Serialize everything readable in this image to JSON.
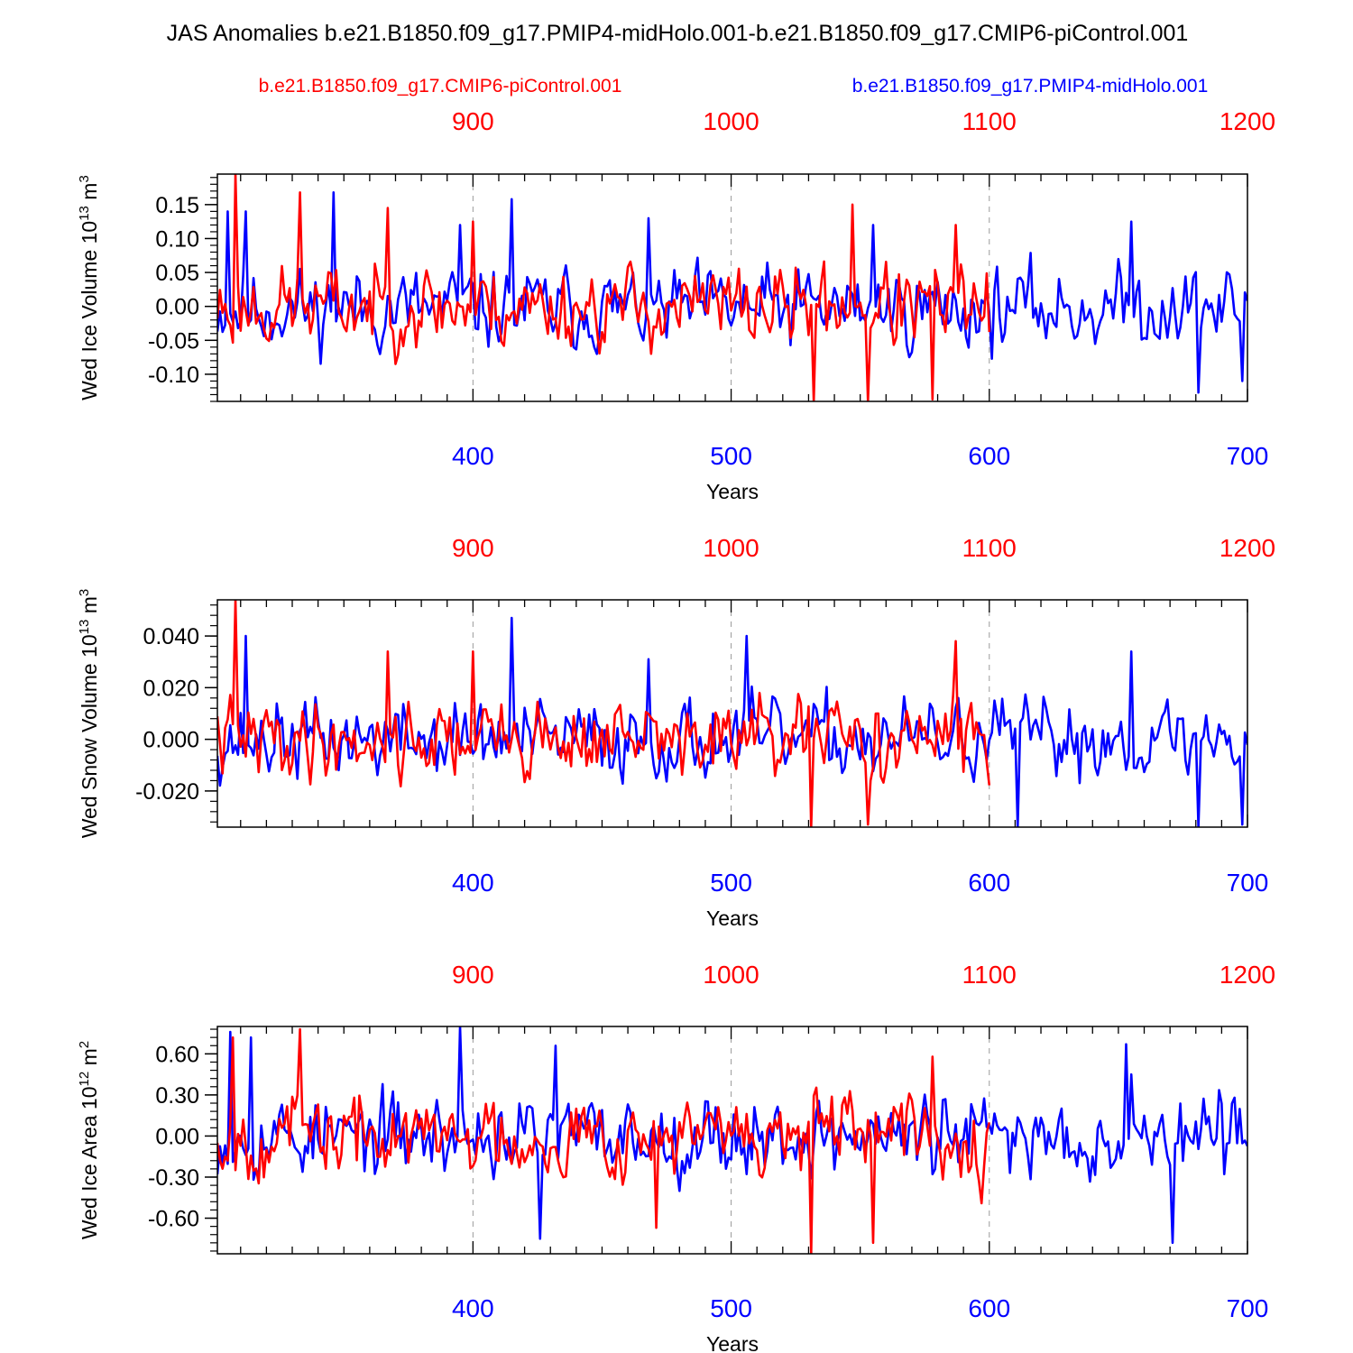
{
  "title": "JAS Anomalies b.e21.B1850.f09_g17.PMIP4-midHolo.001-b.e21.B1850.f09_g17.CMIP6-piControl.001",
  "legend": {
    "red_label": "b.e21.B1850.f09_g17.CMIP6-piControl.001",
    "blue_label": "b.e21.B1850.f09_g17.PMIP4-midHolo.001"
  },
  "colors": {
    "red": "#ff0000",
    "blue": "#0000ff",
    "axis": "#000000",
    "grid": "#999999"
  },
  "chart_data": [
    {
      "type": "line",
      "ylabel_main": "Wed Ice Volume 10",
      "ylabel_exp": "13",
      "ylabel_unit_base": " m",
      "ylabel_unit_exp": "3",
      "xlabel": "Years",
      "ylim": [
        -0.14,
        0.195
      ],
      "yticks": [
        -0.1,
        -0.05,
        0.0,
        0.05,
        0.1,
        0.15
      ],
      "ytick_labels": [
        "-0.10",
        "-0.05",
        "0.00",
        "0.05",
        "0.10",
        "0.15"
      ],
      "yminor_step": 0.01,
      "x_bottom": {
        "range": [
          301,
          700
        ],
        "ticks": [
          400,
          500,
          600,
          700
        ],
        "tick_labels": [
          "400",
          "500",
          "600",
          "700"
        ]
      },
      "x_top": {
        "ticks": [
          900,
          1000,
          1100,
          1200
        ],
        "tick_labels": [
          "900",
          "1000",
          "1100",
          "1200"
        ],
        "offset": 500
      },
      "series": [
        {
          "name": "b.e21.B1850.f09_g17.PMIP4-midHolo.001",
          "color": "blue",
          "start_year": 301,
          "scale": 0.052,
          "offset": -0.002,
          "seed": 11,
          "min": -0.13,
          "max": 0.168,
          "peaks": [
            [
              305,
              0.14
            ],
            [
              312,
              0.14
            ],
            [
              346,
              0.168
            ],
            [
              395,
              0.12
            ],
            [
              415,
              0.158
            ],
            [
              468,
              0.13
            ],
            [
              555,
              0.12
            ],
            [
              655,
              0.125
            ],
            [
              671,
              0.027
            ],
            [
              681,
              -0.127
            ],
            [
              698,
              -0.11
            ]
          ]
        },
        {
          "name": "b.e21.B1850.f09_g17.CMIP6-piControl.001",
          "color": "red",
          "start_year": 301,
          "scale": 0.052,
          "offset": 0.0,
          "seed": 23,
          "min": -0.14,
          "max": 0.195,
          "peaks": [
            [
              308,
              0.195
            ],
            [
              333,
              0.168
            ],
            [
              367,
              0.145
            ],
            [
              400,
              0.125
            ],
            [
              547,
              0.15
            ],
            [
              553,
              -0.14
            ],
            [
              578,
              -0.137
            ],
            [
              587,
              0.12
            ],
            [
              532,
              -0.14
            ]
          ]
        }
      ]
    },
    {
      "type": "line",
      "ylabel_main": "Wed Snow Volume 10",
      "ylabel_exp": "13",
      "ylabel_unit_base": " m",
      "ylabel_unit_exp": "3",
      "xlabel": "Years",
      "ylim": [
        -0.034,
        0.054
      ],
      "yticks": [
        -0.02,
        0.0,
        0.02,
        0.04
      ],
      "ytick_labels": [
        "-0.020",
        "0.000",
        "0.020",
        "0.040"
      ],
      "yminor_step": 0.004,
      "x_bottom": {
        "range": [
          301,
          700
        ],
        "ticks": [
          400,
          500,
          600,
          700
        ],
        "tick_labels": [
          "400",
          "500",
          "600",
          "700"
        ]
      },
      "x_top": {
        "ticks": [
          900,
          1000,
          1100,
          1200
        ],
        "tick_labels": [
          "900",
          "1000",
          "1100",
          "1200"
        ],
        "offset": 500
      },
      "series": [
        {
          "name": "b.e21.B1850.f09_g17.PMIP4-midHolo.001",
          "color": "blue",
          "start_year": 301,
          "scale": 0.013,
          "offset": 0.0,
          "seed": 37,
          "min": -0.034,
          "max": 0.047,
          "peaks": [
            [
              312,
              0.04
            ],
            [
              415,
              0.047
            ],
            [
              468,
              0.031
            ],
            [
              506,
              0.04
            ],
            [
              655,
              0.034
            ],
            [
              611,
              -0.034
            ],
            [
              681,
              -0.034
            ],
            [
              698,
              -0.033
            ]
          ]
        },
        {
          "name": "b.e21.B1850.f09_g17.CMIP6-piControl.001",
          "color": "red",
          "start_year": 301,
          "scale": 0.013,
          "offset": 0.0,
          "seed": 41,
          "min": -0.034,
          "max": 0.054,
          "peaks": [
            [
              308,
              0.054
            ],
            [
              367,
              0.034
            ],
            [
              400,
              0.034
            ],
            [
              531,
              -0.034
            ],
            [
              553,
              -0.033
            ],
            [
              587,
              0.038
            ]
          ]
        }
      ]
    },
    {
      "type": "line",
      "ylabel_main": "Wed Ice Area 10",
      "ylabel_exp": "12",
      "ylabel_unit_base": " m",
      "ylabel_unit_exp": "2",
      "xlabel": "Years",
      "ylim": [
        -0.86,
        0.8
      ],
      "yticks": [
        -0.6,
        -0.3,
        0.0,
        0.3,
        0.6
      ],
      "ytick_labels": [
        "-0.60",
        "-0.30",
        "0.00",
        "0.30",
        "0.60"
      ],
      "yminor_step": 0.06,
      "x_bottom": {
        "range": [
          301,
          700
        ],
        "ticks": [
          400,
          500,
          600,
          700
        ],
        "tick_labels": [
          "400",
          "500",
          "600",
          "700"
        ]
      },
      "x_top": {
        "ticks": [
          900,
          1000,
          1100,
          1200
        ],
        "tick_labels": [
          "900",
          "1000",
          "1100",
          "1200"
        ],
        "offset": 500
      },
      "series": [
        {
          "name": "b.e21.B1850.f09_g17.PMIP4-midHolo.001",
          "color": "blue",
          "start_year": 301,
          "scale": 0.25,
          "offset": 0.0,
          "seed": 53,
          "min": -0.78,
          "max": 0.8,
          "peaks": [
            [
              306,
              0.76
            ],
            [
              314,
              0.72
            ],
            [
              395,
              0.8
            ],
            [
              426,
              -0.75
            ],
            [
              432,
              0.66
            ],
            [
              653,
              0.67
            ],
            [
              671,
              -0.78
            ],
            [
              655,
              0.45
            ]
          ]
        },
        {
          "name": "b.e21.B1850.f09_g17.CMIP6-piControl.001",
          "color": "red",
          "start_year": 301,
          "scale": 0.25,
          "offset": 0.0,
          "seed": 67,
          "min": -0.86,
          "max": 0.78,
          "peaks": [
            [
              307,
              0.72
            ],
            [
              333,
              0.78
            ],
            [
              471,
              -0.67
            ],
            [
              531,
              -0.86
            ],
            [
              555,
              -0.78
            ],
            [
              578,
              0.58
            ],
            [
              600,
              0.1
            ]
          ]
        }
      ]
    }
  ]
}
